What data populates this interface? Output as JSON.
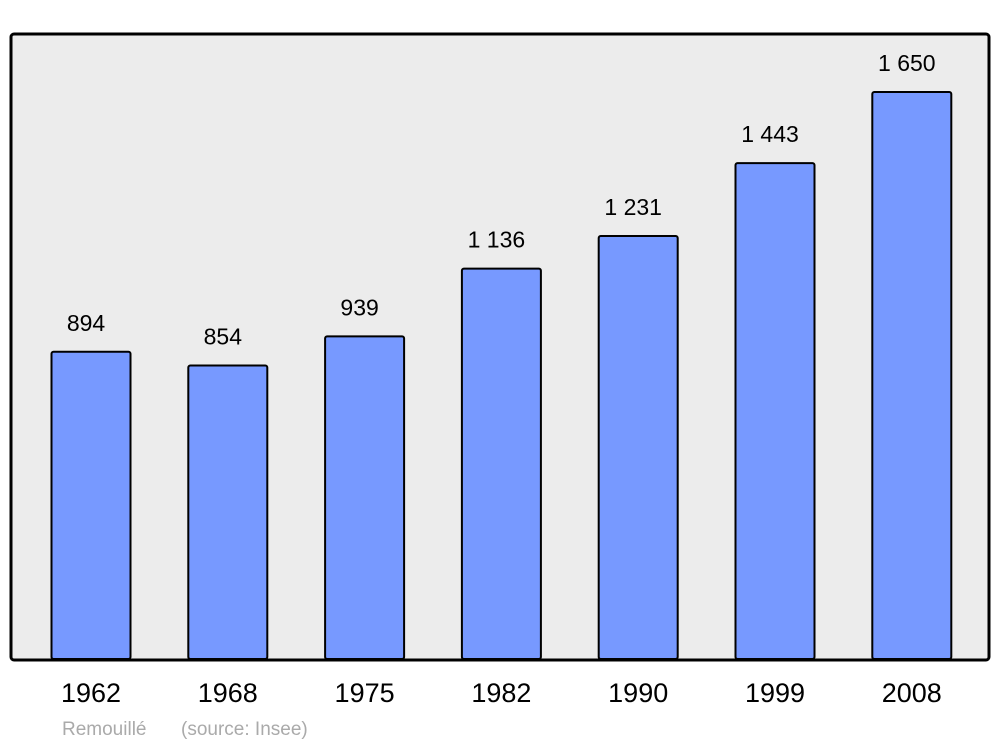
{
  "chart_data": {
    "type": "bar",
    "categories": [
      "1962",
      "1968",
      "1975",
      "1982",
      "1990",
      "1999",
      "2008"
    ],
    "values": [
      894,
      854,
      939,
      1136,
      1231,
      1443,
      1650
    ],
    "value_labels": [
      "894",
      "854",
      "939",
      "1 136",
      "1 231",
      "1 443",
      "1 650"
    ],
    "color": "#7799ff",
    "credit": "Remouillé",
    "source": "(source: Insee)"
  }
}
